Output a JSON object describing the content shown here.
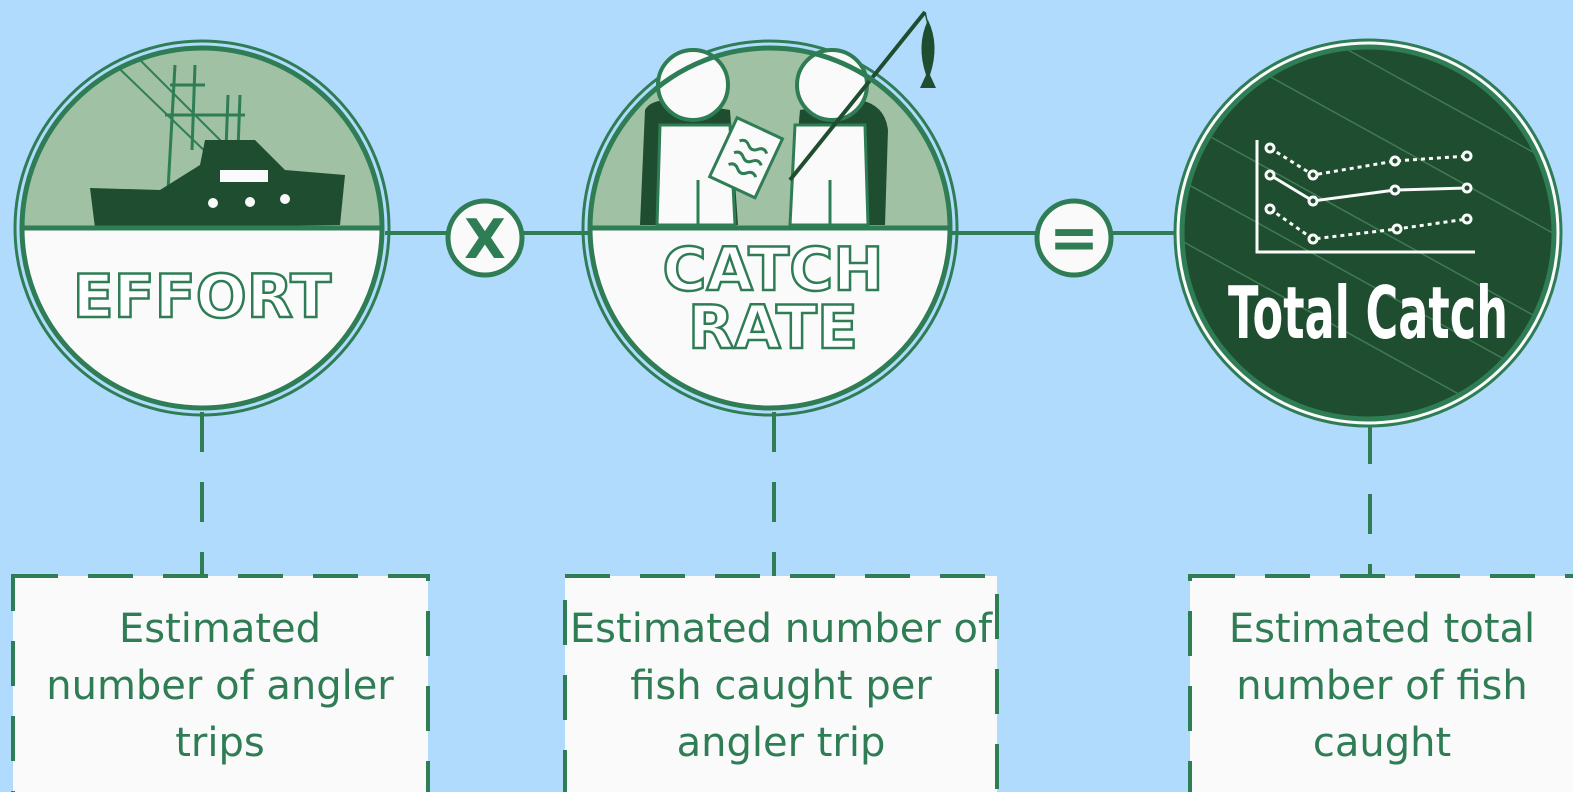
{
  "nodes": [
    {
      "label": [
        "EFFORT"
      ],
      "description": [
        "Estimated",
        "number of angler",
        "trips"
      ]
    },
    {
      "label": [
        "CATCH",
        "RATE"
      ],
      "description": [
        "Estimated number of",
        "fish caught per",
        "angler trip"
      ]
    },
    {
      "label": [
        "Total Catch"
      ],
      "description": [
        "Estimated total",
        "number of fish",
        "caught"
      ]
    }
  ],
  "operators": [
    "X",
    "="
  ]
}
